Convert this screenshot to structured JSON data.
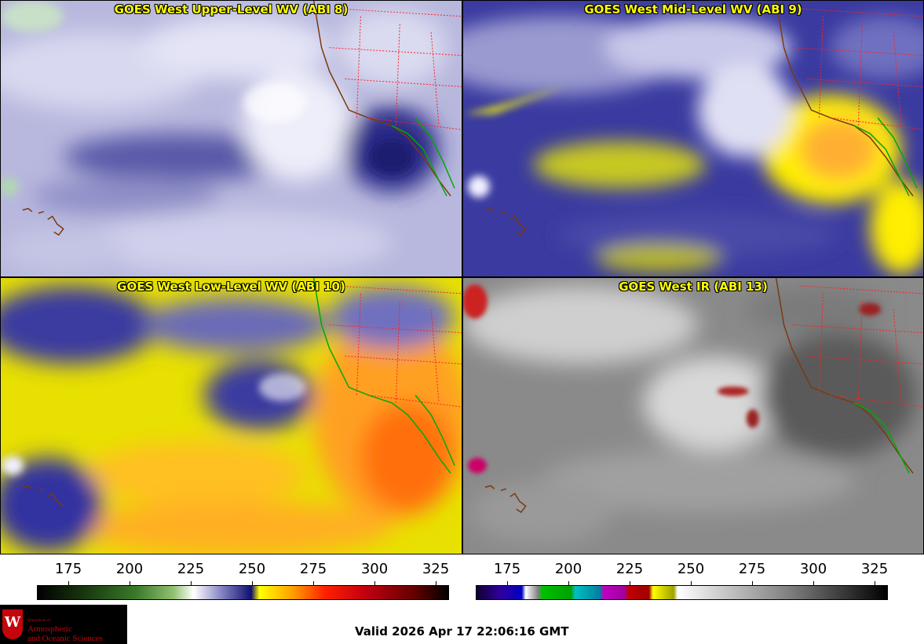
{
  "panels": [
    {
      "title": "GOES West Upper-Level WV (ABI 8)",
      "palette": "wv-blue-white"
    },
    {
      "title": "GOES West Mid-Level WV (ABI 9)",
      "palette": "wv-blue-yellow"
    },
    {
      "title": "GOES West Low-Level WV (ABI 10)",
      "palette": "wv-yellow-orange"
    },
    {
      "title": "GOES West IR (ABI 13)",
      "palette": "ir-gray"
    }
  ],
  "colorbars": [
    {
      "ticks": [
        "175",
        "200",
        "225",
        "250",
        "275",
        "300",
        "325"
      ]
    },
    {
      "ticks": [
        "175",
        "200",
        "225",
        "250",
        "275",
        "300",
        "325"
      ]
    }
  ],
  "logo": {
    "line1": "Department of",
    "line2": "Atmospheric",
    "line3": "and Oceanic Sciences"
  },
  "valid_time": "Valid 2026 Apr 17 22:06:16 GMT",
  "colors": {
    "title": "#ffff00",
    "coast_green": "#00aa00",
    "coast_brown": "#7a3a10",
    "state_red": "#ff2020"
  }
}
